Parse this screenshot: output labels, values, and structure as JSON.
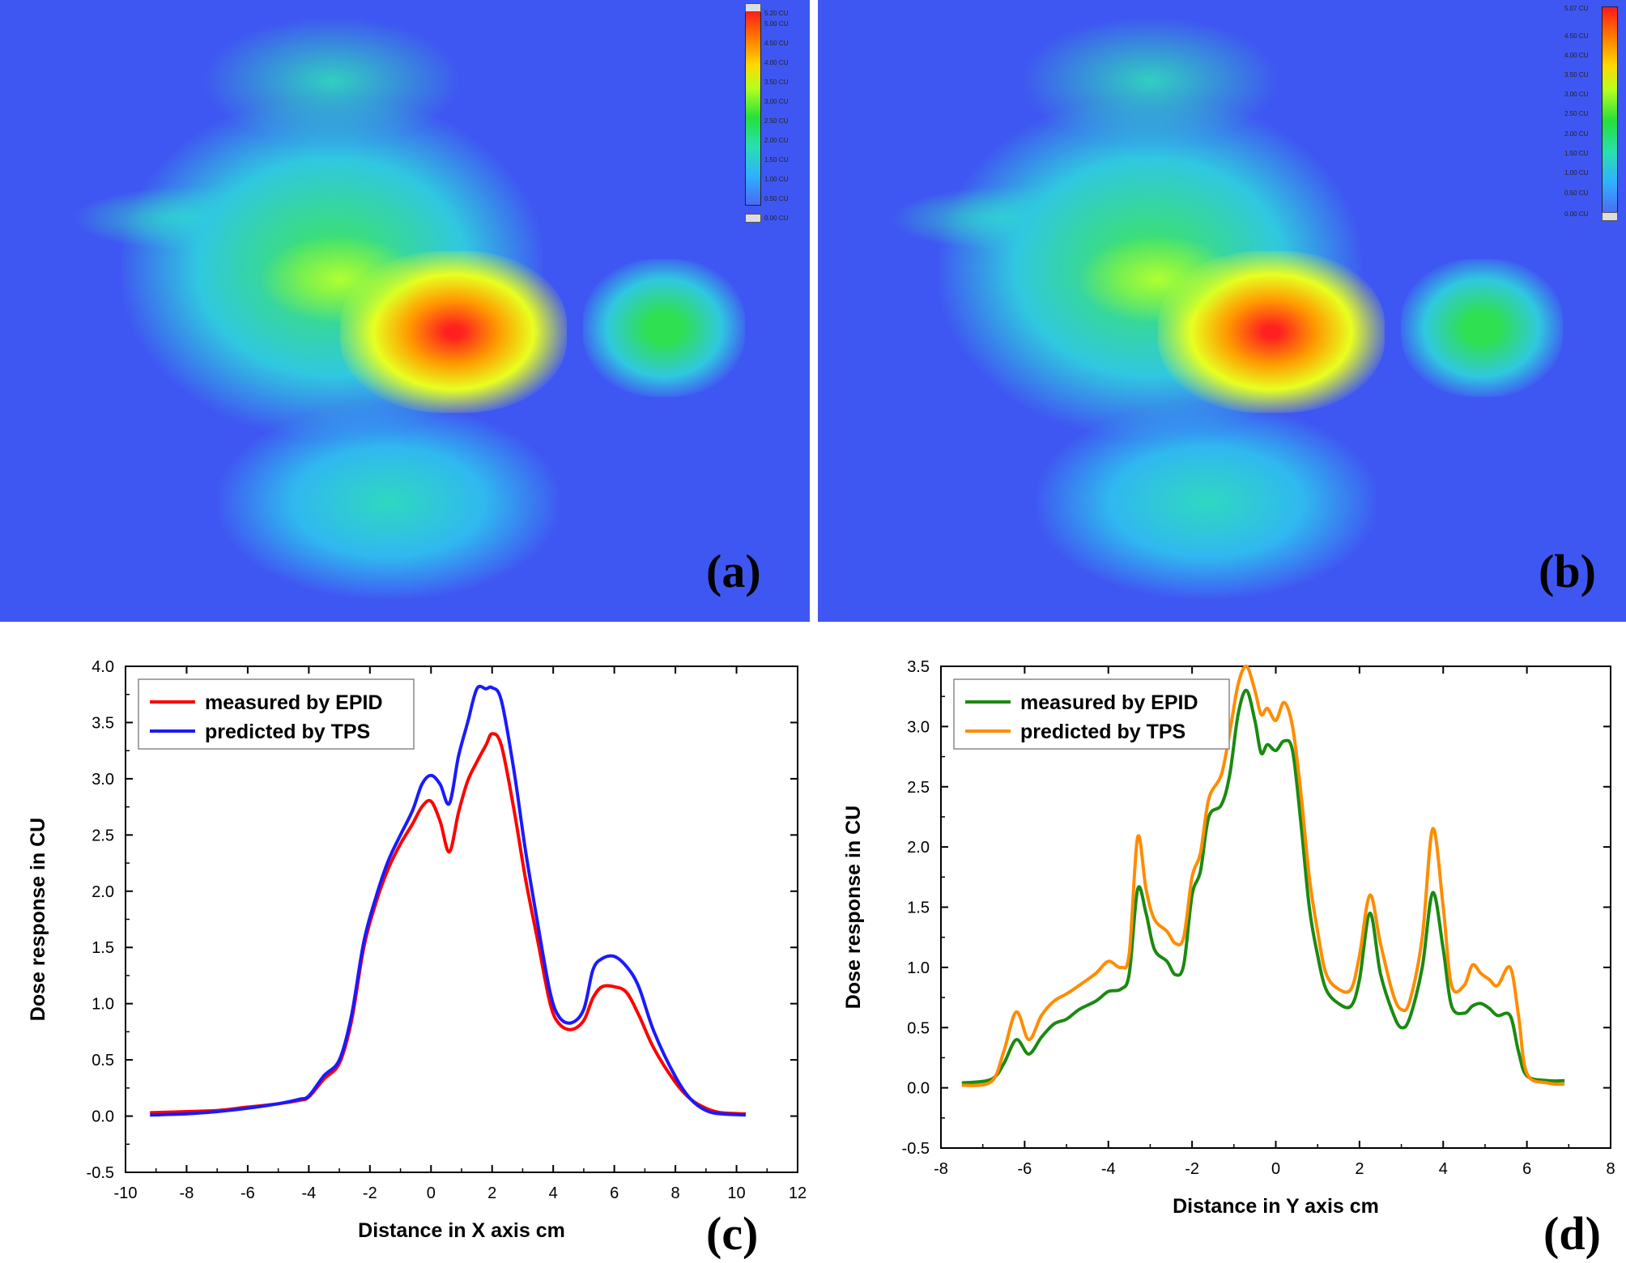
{
  "panels": {
    "a": {
      "label": "(a)",
      "colorbar_ticks": [
        "5.20 CU",
        "5.00 CU",
        "4.50 CU",
        "4.00 CU",
        "3.50 CU",
        "3.00 CU",
        "2.50 CU",
        "2.00 CU",
        "1.50 CU",
        "1.00 CU",
        "0.50 CU",
        "0.00 CU"
      ]
    },
    "b": {
      "label": "(b)",
      "colorbar_ticks": [
        "5.07 CU",
        "4.50 CU",
        "4.00 CU",
        "3.50 CU",
        "3.00 CU",
        "2.50 CU",
        "2.00 CU",
        "1.50 CU",
        "1.00 CU",
        "0.50 CU",
        "0.00 CU"
      ]
    },
    "c": {
      "label": "(c)"
    },
    "d": {
      "label": "(d)"
    }
  },
  "colors": {
    "map_background": "#3f57f2",
    "epid_c": "#ff0000",
    "tps_c": "#1a1aff",
    "epid_d": "#1a8a10",
    "tps_d": "#ff8c00"
  },
  "chart_data": [
    {
      "id": "c",
      "type": "line",
      "title": "",
      "xlabel": "Distance in X axis cm",
      "ylabel": "Dose response in CU",
      "xlim": [
        -10,
        12
      ],
      "ylim": [
        -0.5,
        4.0
      ],
      "xticks": [
        -10,
        -8,
        -6,
        -4,
        -2,
        0,
        2,
        4,
        6,
        8,
        10,
        12
      ],
      "yticks": [
        -0.5,
        0.0,
        0.5,
        1.0,
        1.5,
        2.0,
        2.5,
        3.0,
        3.5,
        4.0
      ],
      "tick_labels_x": [
        "-10",
        "-8",
        "-6",
        "-4",
        "-2",
        "0",
        "2",
        "4",
        "6",
        "8",
        "10",
        "12"
      ],
      "tick_labels_y": [
        "-0.5",
        "0.0",
        "0.5",
        "1.0",
        "1.5",
        "2.0",
        "2.5",
        "3.0",
        "3.5",
        "4.0"
      ],
      "legend_position": "top-left",
      "series": [
        {
          "name": "measured by EPID",
          "color": "#ff0000",
          "x": [
            -9.2,
            -8,
            -7,
            -6,
            -5,
            -4.3,
            -4,
            -3.5,
            -3,
            -2.6,
            -2.2,
            -1.8,
            -1.4,
            -1,
            -0.6,
            -0.3,
            0,
            0.3,
            0.6,
            0.9,
            1.2,
            1.5,
            1.8,
            2,
            2.3,
            2.7,
            3.1,
            3.5,
            3.9,
            4.2,
            4.6,
            5,
            5.3,
            5.6,
            6,
            6.4,
            6.8,
            7.3,
            8,
            8.5,
            9,
            9.5,
            10.3
          ],
          "values": [
            0.03,
            0.04,
            0.05,
            0.08,
            0.11,
            0.14,
            0.17,
            0.33,
            0.47,
            0.85,
            1.5,
            1.9,
            2.2,
            2.42,
            2.6,
            2.75,
            2.8,
            2.62,
            2.35,
            2.7,
            2.98,
            3.15,
            3.3,
            3.4,
            3.3,
            2.75,
            2.1,
            1.55,
            1.0,
            0.82,
            0.77,
            0.85,
            1.05,
            1.15,
            1.15,
            1.1,
            0.9,
            0.6,
            0.3,
            0.15,
            0.07,
            0.03,
            0.02
          ]
        },
        {
          "name": "predicted by TPS",
          "color": "#1a1aff",
          "x": [
            -9.2,
            -8,
            -7,
            -6,
            -5,
            -4.3,
            -4,
            -3.5,
            -3,
            -2.6,
            -2.2,
            -1.8,
            -1.4,
            -1,
            -0.6,
            -0.3,
            0,
            0.3,
            0.6,
            0.9,
            1.2,
            1.5,
            1.8,
            2,
            2.3,
            2.7,
            3.1,
            3.5,
            3.9,
            4.2,
            4.6,
            5,
            5.3,
            5.6,
            6,
            6.4,
            6.8,
            7.3,
            8,
            8.5,
            9,
            9.5,
            10.3
          ],
          "values": [
            0.01,
            0.02,
            0.04,
            0.07,
            0.11,
            0.15,
            0.18,
            0.36,
            0.5,
            0.9,
            1.55,
            1.95,
            2.27,
            2.5,
            2.72,
            2.95,
            3.03,
            2.95,
            2.78,
            3.2,
            3.5,
            3.8,
            3.8,
            3.81,
            3.7,
            3.1,
            2.35,
            1.7,
            1.1,
            0.88,
            0.83,
            0.95,
            1.3,
            1.4,
            1.42,
            1.33,
            1.15,
            0.75,
            0.35,
            0.15,
            0.05,
            0.02,
            0.01
          ]
        }
      ]
    },
    {
      "id": "d",
      "type": "line",
      "title": "",
      "xlabel": "Distance in Y axis cm",
      "ylabel": "Dose response in CU",
      "xlim": [
        -8,
        8
      ],
      "ylim": [
        -0.5,
        3.5
      ],
      "xticks": [
        -8,
        -6,
        -4,
        -2,
        0,
        2,
        4,
        6,
        8
      ],
      "yticks": [
        -0.5,
        0.0,
        0.5,
        1.0,
        1.5,
        2.0,
        2.5,
        3.0,
        3.5
      ],
      "tick_labels_x": [
        "-8",
        "-6",
        "-4",
        "-2",
        "0",
        "2",
        "4",
        "6",
        "8"
      ],
      "tick_labels_y": [
        "-0.5",
        "0.0",
        "0.5",
        "1.0",
        "1.5",
        "2.0",
        "2.5",
        "3.0",
        "3.5"
      ],
      "legend_position": "top-left",
      "series": [
        {
          "name": "measured by EPID",
          "color": "#1a8a10",
          "x": [
            -7.5,
            -6.8,
            -6.5,
            -6.2,
            -5.9,
            -5.6,
            -5.3,
            -5,
            -4.7,
            -4.3,
            -4,
            -3.7,
            -3.5,
            -3.3,
            -3.1,
            -2.9,
            -2.6,
            -2.4,
            -2.2,
            -2,
            -1.8,
            -1.6,
            -1.3,
            -1.1,
            -0.9,
            -0.7,
            -0.5,
            -0.35,
            -0.2,
            0,
            0.2,
            0.4,
            0.6,
            0.8,
            1.0,
            1.2,
            1.5,
            1.8,
            2.0,
            2.25,
            2.5,
            2.8,
            3.0,
            3.2,
            3.5,
            3.75,
            4.0,
            4.2,
            4.5,
            4.7,
            4.9,
            5.1,
            5.3,
            5.6,
            5.8,
            6.0,
            6.5,
            6.9
          ],
          "values": [
            0.04,
            0.07,
            0.2,
            0.4,
            0.28,
            0.42,
            0.53,
            0.57,
            0.65,
            0.72,
            0.8,
            0.82,
            0.95,
            1.65,
            1.45,
            1.15,
            1.05,
            0.94,
            1.02,
            1.6,
            1.8,
            2.25,
            2.35,
            2.6,
            3.1,
            3.3,
            3.05,
            2.78,
            2.85,
            2.8,
            2.88,
            2.8,
            2.2,
            1.5,
            1.1,
            0.82,
            0.7,
            0.68,
            0.9,
            1.45,
            0.95,
            0.62,
            0.5,
            0.58,
            1.0,
            1.62,
            1.15,
            0.68,
            0.62,
            0.68,
            0.7,
            0.66,
            0.6,
            0.6,
            0.3,
            0.1,
            0.06,
            0.06
          ]
        },
        {
          "name": "predicted by TPS",
          "color": "#ff8c00",
          "x": [
            -7.5,
            -6.8,
            -6.5,
            -6.2,
            -5.9,
            -5.6,
            -5.3,
            -5,
            -4.7,
            -4.3,
            -4,
            -3.7,
            -3.5,
            -3.3,
            -3.1,
            -2.9,
            -2.6,
            -2.4,
            -2.2,
            -2,
            -1.8,
            -1.6,
            -1.3,
            -1.1,
            -0.9,
            -0.7,
            -0.5,
            -0.35,
            -0.2,
            0,
            0.2,
            0.4,
            0.6,
            0.8,
            1.0,
            1.2,
            1.5,
            1.8,
            2.0,
            2.25,
            2.5,
            2.8,
            3.0,
            3.2,
            3.5,
            3.75,
            4.0,
            4.2,
            4.5,
            4.7,
            4.9,
            5.1,
            5.3,
            5.6,
            5.8,
            6.0,
            6.5,
            6.9
          ],
          "values": [
            0.02,
            0.05,
            0.3,
            0.63,
            0.4,
            0.6,
            0.72,
            0.78,
            0.85,
            0.95,
            1.05,
            1.0,
            1.12,
            2.08,
            1.65,
            1.4,
            1.3,
            1.2,
            1.25,
            1.75,
            1.95,
            2.4,
            2.6,
            2.95,
            3.35,
            3.5,
            3.3,
            3.1,
            3.15,
            3.05,
            3.2,
            3.0,
            2.45,
            1.75,
            1.3,
            0.95,
            0.82,
            0.82,
            1.1,
            1.6,
            1.2,
            0.78,
            0.65,
            0.72,
            1.25,
            2.15,
            1.5,
            0.85,
            0.85,
            1.02,
            0.95,
            0.9,
            0.85,
            1.0,
            0.6,
            0.12,
            0.04,
            0.03
          ]
        }
      ]
    }
  ]
}
